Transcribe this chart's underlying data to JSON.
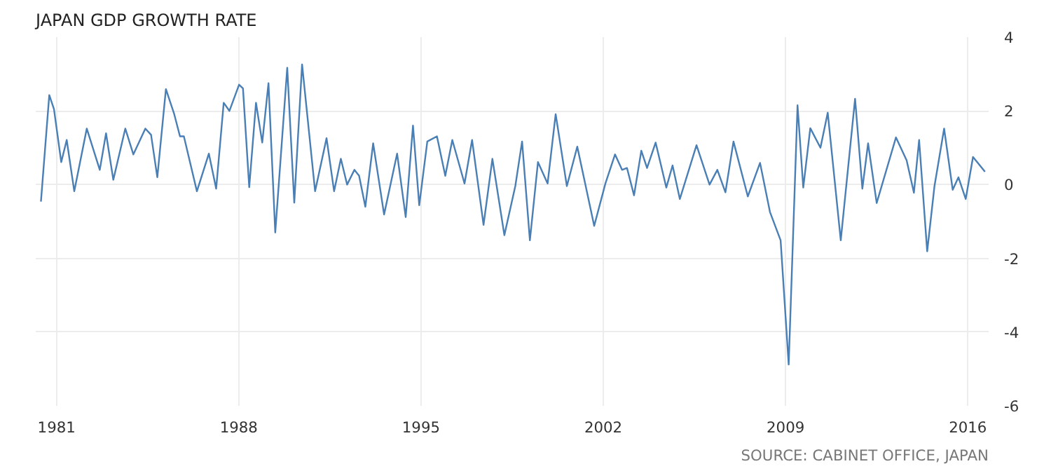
{
  "chart_data": {
    "type": "line",
    "title": "JAPAN GDP GROWTH RATE",
    "annotations": [
      "SOURCE: CABINET OFFICE, JAPAN"
    ],
    "x": [
      1980.4,
      1980.72,
      1980.9,
      1981.18,
      1981.39,
      1981.68,
      1982.16,
      1982.66,
      1982.9,
      1983.18,
      1983.64,
      1983.95,
      1984.41,
      1984.63,
      1984.87,
      1985.2,
      1985.52,
      1985.74,
      1985.89,
      1986.39,
      1986.85,
      1987.13,
      1987.42,
      1987.64,
      1988.01,
      1988.16,
      1988.4,
      1988.66,
      1988.9,
      1989.14,
      1989.4,
      1989.86,
      1990.13,
      1990.43,
      1990.93,
      1991.37,
      1991.66,
      1991.92,
      1992.16,
      1992.44,
      1992.62,
      1992.86,
      1993.16,
      1993.58,
      1994.08,
      1994.41,
      1994.69,
      1994.93,
      1995.24,
      1995.61,
      1995.93,
      1996.2,
      1996.67,
      1996.96,
      1997.4,
      1997.74,
      1998.2,
      1998.62,
      1998.88,
      1999.18,
      1999.49,
      1999.86,
      2000.17,
      2000.6,
      2001.0,
      2001.65,
      2002.08,
      2002.45,
      2002.72,
      2002.91,
      2003.18,
      2003.46,
      2003.68,
      2004.01,
      2004.42,
      2004.66,
      2004.94,
      2005.58,
      2006.08,
      2006.38,
      2006.69,
      2007.0,
      2007.55,
      2008.02,
      2008.4,
      2008.81,
      2009.12,
      2009.46,
      2009.68,
      2009.95,
      2010.34,
      2010.62,
      2011.12,
      2011.67,
      2011.95,
      2012.17,
      2012.5,
      2013.24,
      2013.65,
      2013.93,
      2014.13,
      2014.44,
      2014.72,
      2015.09,
      2015.42,
      2015.64,
      2015.92,
      2016.2,
      2016.66
    ],
    "series": [
      {
        "color": "#4a7fb5",
        "values": [
          -0.46,
          2.43,
          2.05,
          0.61,
          1.21,
          -0.18,
          1.52,
          0.4,
          1.39,
          0.13,
          1.52,
          0.82,
          1.52,
          1.35,
          0.2,
          2.59,
          1.91,
          1.31,
          1.31,
          -0.18,
          0.84,
          -0.11,
          2.22,
          2.0,
          2.71,
          2.61,
          -0.07,
          2.22,
          1.14,
          2.75,
          -1.3,
          3.17,
          -0.49,
          3.26,
          -0.18,
          1.26,
          -0.18,
          0.7,
          0.0,
          0.4,
          0.24,
          -0.6,
          1.12,
          -0.81,
          0.84,
          -0.88,
          1.6,
          -0.56,
          1.17,
          1.31,
          0.24,
          1.21,
          0.03,
          1.21,
          -1.09,
          0.7,
          -1.37,
          -0.04,
          1.17,
          -1.51,
          0.61,
          0.03,
          1.91,
          -0.04,
          1.03,
          -1.12,
          0.03,
          0.82,
          0.4,
          0.45,
          -0.29,
          0.92,
          0.45,
          1.14,
          -0.08,
          0.52,
          -0.39,
          1.07,
          0.0,
          0.4,
          -0.21,
          1.17,
          -0.32,
          0.59,
          -0.74,
          -1.51,
          -4.88,
          2.15,
          -0.08,
          1.53,
          1.0,
          1.95,
          -1.51,
          2.33,
          -0.11,
          1.12,
          -0.5,
          1.28,
          0.66,
          -0.22,
          1.21,
          -1.81,
          -0.04,
          1.52,
          -0.14,
          0.2,
          -0.39,
          0.75,
          0.35
        ]
      }
    ],
    "xlim": [
      1980.2,
      2016.8
    ],
    "xticks": [
      1981,
      1988,
      1995,
      2002,
      2009,
      2016
    ],
    "ylim": [
      -6,
      4
    ],
    "yticks": [
      -6,
      -4,
      -2,
      0,
      2,
      4
    ],
    "grid": true,
    "marker": "none",
    "line_style": "solid"
  }
}
